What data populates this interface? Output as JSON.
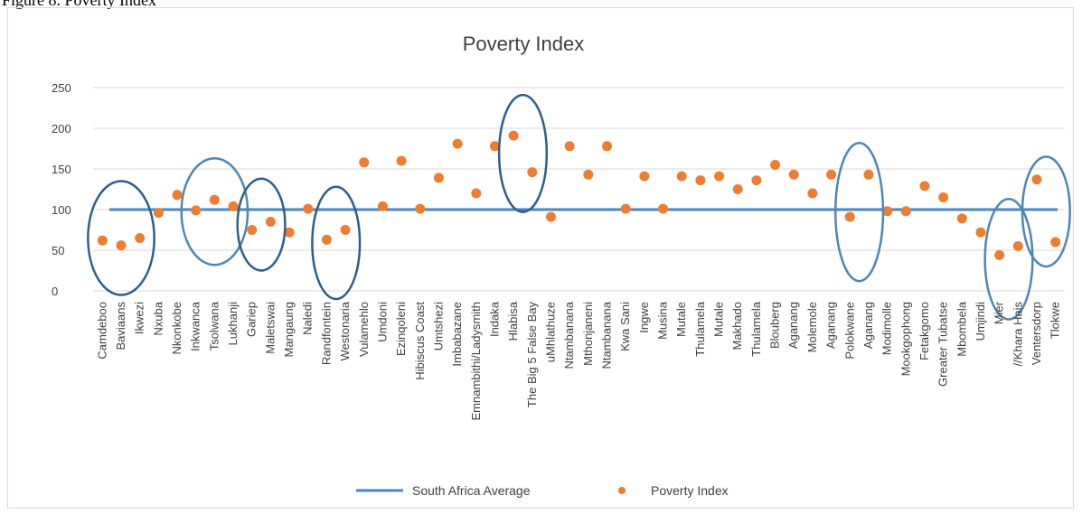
{
  "caption": "Figure 8. Poverty Index",
  "chart_data": {
    "type": "scatter",
    "title": "Poverty Index",
    "xlabel": "",
    "ylabel": "",
    "ylim": [
      0,
      250
    ],
    "yticks": [
      0,
      50,
      100,
      150,
      200,
      250
    ],
    "grid": true,
    "legend_position": "bottom",
    "categories": [
      "Camdeboo",
      "Baviaans",
      "Ikwezi",
      "Nxuba",
      "Nkonkobe",
      "Inkwanca",
      "Tsolwana",
      "Lukhanji",
      "Gariep",
      "Maletswai",
      "Mangaung",
      "Naledi",
      "Randfontein",
      "Westonaria",
      "Vulamehlo",
      "Umdoni",
      "Ezinqoleni",
      "Hibiscus Coast",
      "Umtshezi",
      "Imbabazane",
      "Emnambithi/Ladysmith",
      "Indaka",
      "Hlabisa",
      "The Big 5 False Bay",
      "uMhlathuze",
      "Ntambanana",
      "Mthonjaneni",
      "Ntambanana",
      "Kwa Sani",
      "Ingwe",
      "Musina",
      "Mutale",
      "Thulamela",
      "Mutale",
      "Makhado",
      "Thulamela",
      "Blouberg",
      "Aganang",
      "Molemole",
      "Aganang",
      "Polokwane",
      "Aganang",
      "Modimolle",
      "Mookgophong",
      "Fetakgomo",
      "Greater Tubatse",
      "Mbombela",
      "Umjindi",
      "Mier",
      "//Khara Hais",
      "Ventersdorp",
      "Tlokwe"
    ],
    "series": [
      {
        "name": "South Africa Average",
        "style": "line",
        "color": "#4a86bf",
        "values": [
          100,
          100,
          100,
          100,
          100,
          100,
          100,
          100,
          100,
          100,
          100,
          100,
          100,
          100,
          100,
          100,
          100,
          100,
          100,
          100,
          100,
          100,
          100,
          100,
          100,
          100,
          100,
          100,
          100,
          100,
          100,
          100,
          100,
          100,
          100,
          100,
          100,
          100,
          100,
          100,
          100,
          100,
          100,
          100,
          100,
          100,
          100,
          100,
          100,
          100,
          100,
          100
        ]
      },
      {
        "name": "Poverty Index",
        "style": "marker",
        "color": "#ed7d31",
        "values": [
          62,
          56,
          65,
          96,
          118,
          99,
          112,
          104,
          75,
          85,
          72,
          101,
          63,
          75,
          158,
          104,
          160,
          101,
          139,
          181,
          120,
          178,
          191,
          146,
          91,
          178,
          143,
          178,
          101,
          141,
          101,
          141,
          136,
          141,
          125,
          136,
          155,
          143,
          120,
          143,
          91,
          143,
          98,
          98,
          129,
          115,
          89,
          72,
          44,
          55,
          137,
          60
        ]
      }
    ],
    "highlight_ellipse_color": "#2e5f8a"
  }
}
